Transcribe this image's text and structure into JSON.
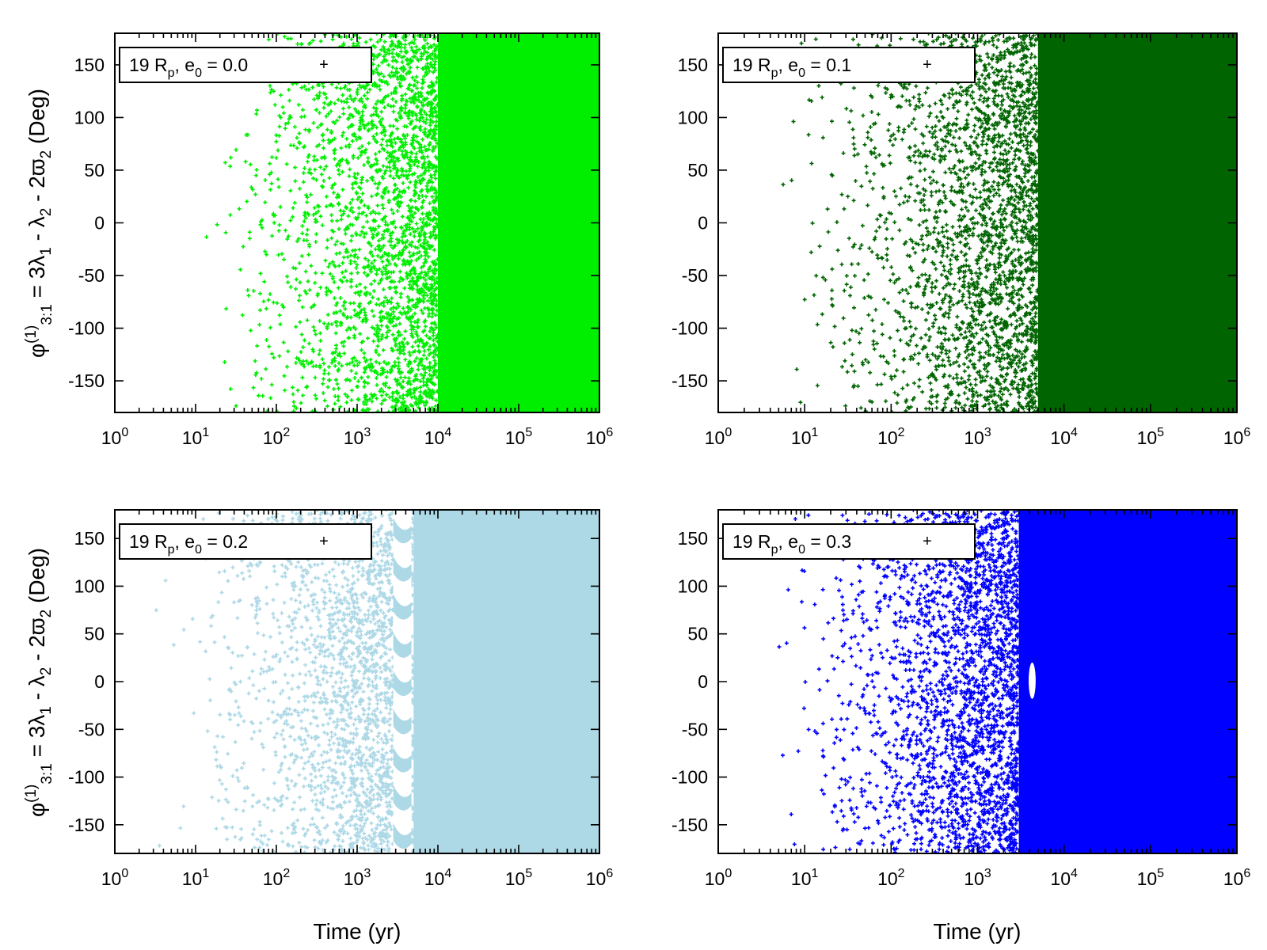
{
  "figure": {
    "ylabel": "φ(1)3:1 = 3λ1 - λ2 - 2ϖ2 (Deg)",
    "ylabel_parts": {
      "phi": "φ",
      "phi_sup": "(1)",
      "phi_sub": "3:1",
      "mid1": " = 3λ",
      "sub1": "1",
      "mid2": " - λ",
      "sub2": "2",
      "mid3": " - 2ϖ",
      "sub3": "2",
      "tail": " (Deg)"
    },
    "xlabel": "Time (yr)"
  },
  "chart_data": [
    {
      "type": "scatter",
      "panel": "top-left",
      "legend": {
        "text": "19 Rp, e0 = 0.0",
        "base": "19 R",
        "base_sub": "p",
        "mid": ", e",
        "mid_sub": "0",
        "tail": " = 0.0",
        "placement": "top-left"
      },
      "color": "#00ee00",
      "x_scale": "log",
      "xlim": [
        1,
        1000000
      ],
      "ylim": [
        -180,
        180
      ],
      "xticks": [
        1,
        10,
        100,
        1000,
        10000,
        100000,
        1000000
      ],
      "xtick_labels": [
        {
          "base": "10",
          "exp": "0"
        },
        {
          "base": "10",
          "exp": "1"
        },
        {
          "base": "10",
          "exp": "2"
        },
        {
          "base": "10",
          "exp": "3"
        },
        {
          "base": "10",
          "exp": "4"
        },
        {
          "base": "10",
          "exp": "5"
        },
        {
          "base": "10",
          "exp": "6"
        }
      ],
      "yticks": [
        -150,
        -100,
        -50,
        0,
        50,
        100,
        150
      ],
      "ytick_labels": [
        "-150",
        "-100",
        "-50",
        "0",
        "50",
        "100",
        "150"
      ],
      "dense_from": 10000,
      "scatter_start": 8,
      "scatter_growth": 1.1,
      "gaps": []
    },
    {
      "type": "scatter",
      "panel": "top-right",
      "legend": {
        "text": "19 Rp, e0 = 0.1",
        "base": "19 R",
        "base_sub": "p",
        "mid": ", e",
        "mid_sub": "0",
        "tail": " = 0.1",
        "placement": "top-left"
      },
      "color": "#006400",
      "x_scale": "log",
      "xlim": [
        1,
        1000000
      ],
      "ylim": [
        -180,
        180
      ],
      "xticks": [
        1,
        10,
        100,
        1000,
        10000,
        100000,
        1000000
      ],
      "xtick_labels": [
        {
          "base": "10",
          "exp": "0"
        },
        {
          "base": "10",
          "exp": "1"
        },
        {
          "base": "10",
          "exp": "2"
        },
        {
          "base": "10",
          "exp": "3"
        },
        {
          "base": "10",
          "exp": "4"
        },
        {
          "base": "10",
          "exp": "5"
        },
        {
          "base": "10",
          "exp": "6"
        }
      ],
      "yticks": [
        -150,
        -100,
        -50,
        0,
        50,
        100,
        150
      ],
      "ytick_labels": [
        "-150",
        "-100",
        "-50",
        "0",
        "50",
        "100",
        "150"
      ],
      "dense_from": 5000,
      "scatter_start": 3,
      "scatter_growth": 1.15,
      "gaps": []
    },
    {
      "type": "scatter",
      "panel": "bottom-left",
      "legend": {
        "text": "19 Rp, e0 = 0.2",
        "base": "19 R",
        "base_sub": "p",
        "mid": ", e",
        "mid_sub": "0",
        "tail": " = 0.2",
        "placement": "top-left"
      },
      "color": "#add8e6",
      "x_scale": "log",
      "xlim": [
        1,
        1000000
      ],
      "ylim": [
        -180,
        180
      ],
      "xticks": [
        1,
        10,
        100,
        1000,
        10000,
        100000,
        1000000
      ],
      "xtick_labels": [
        {
          "base": "10",
          "exp": "0"
        },
        {
          "base": "10",
          "exp": "1"
        },
        {
          "base": "10",
          "exp": "2"
        },
        {
          "base": "10",
          "exp": "3"
        },
        {
          "base": "10",
          "exp": "4"
        },
        {
          "base": "10",
          "exp": "5"
        },
        {
          "base": "10",
          "exp": "6"
        }
      ],
      "yticks": [
        -150,
        -100,
        -50,
        0,
        50,
        100,
        150
      ],
      "ytick_labels": [
        "-150",
        "-100",
        "-50",
        "0",
        "50",
        "100",
        "150"
      ],
      "dense_from": 5000,
      "scatter_start": 2,
      "scatter_growth": 1.2,
      "gaps": [
        {
          "x_from": 2800,
          "x_to": 4700,
          "y_from": -180,
          "y_to": 180
        }
      ]
    },
    {
      "type": "scatter",
      "panel": "bottom-right",
      "legend": {
        "text": "19 Rp, e0 = 0.3",
        "base": "19 R",
        "base_sub": "p",
        "mid": ", e",
        "mid_sub": "0",
        "tail": " = 0.3",
        "placement": "top-left"
      },
      "color": "#0000ff",
      "x_scale": "log",
      "xlim": [
        1,
        1000000
      ],
      "ylim": [
        -180,
        180
      ],
      "xticks": [
        1,
        10,
        100,
        1000,
        10000,
        100000,
        1000000
      ],
      "xtick_labels": [
        {
          "base": "10",
          "exp": "0"
        },
        {
          "base": "10",
          "exp": "1"
        },
        {
          "base": "10",
          "exp": "2"
        },
        {
          "base": "10",
          "exp": "3"
        },
        {
          "base": "10",
          "exp": "4"
        },
        {
          "base": "10",
          "exp": "5"
        },
        {
          "base": "10",
          "exp": "6"
        }
      ],
      "yticks": [
        -150,
        -100,
        -50,
        0,
        50,
        100,
        150
      ],
      "ytick_labels": [
        "-150",
        "-100",
        "-50",
        "0",
        "50",
        "100",
        "150"
      ],
      "dense_from": 3000,
      "scatter_start": 3,
      "scatter_growth": 1.1,
      "gaps": [
        {
          "x_from": 3900,
          "x_to": 4700,
          "y_from": -18,
          "y_to": 20
        }
      ]
    }
  ]
}
